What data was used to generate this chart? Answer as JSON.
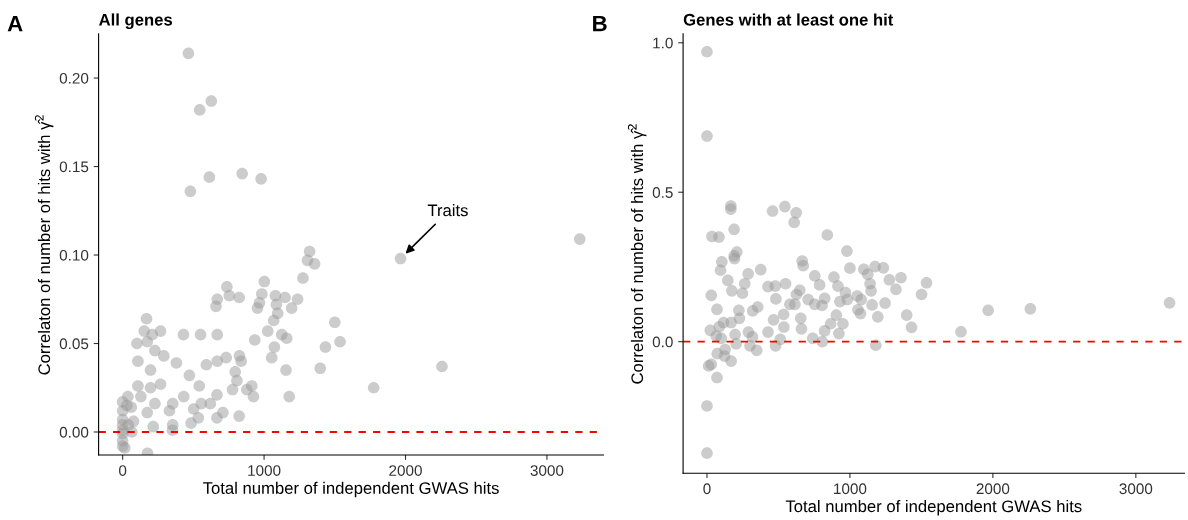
{
  "chart_data": [
    {
      "type": "scatter",
      "title": "All genes",
      "xlabel": "Total number of independent GWAS hits",
      "ylabel": "Correlaton of number of hits with γ̂$^{2}$",
      "annotations": [
        "A",
        {
          "text": "Traits",
          "x": 1965,
          "y": 0.098
        }
      ],
      "series": [
        {
          "color": "#999999",
          "x": [
            465,
            545,
            627,
            613,
            479,
            845,
            979,
            1322,
            1307,
            1357,
            1275,
            1965,
            737,
            669,
            754,
            824,
            1002,
            984,
            967,
            953,
            660,
            1080,
            1148,
            1237,
            1195,
            1087,
            1096,
            1068,
            1026,
            1125,
            1160,
            1500,
            1537,
            1434,
            1397,
            1775,
            1178,
            1155,
            1054,
            1073,
            934,
            169,
            153,
            268,
            209,
            101,
            174,
            430,
            551,
            669,
            228,
            291,
            108,
            197,
            380,
            472,
            592,
            669,
            732,
            826,
            838,
            796,
            808,
            542,
            268,
            108,
            197,
            129,
            37,
            777,
            878,
            913,
            925,
            667,
            432,
            556,
            620,
            502,
            331,
            228,
            354,
            709,
            824,
            535,
            667,
            484,
            352,
            354,
            216,
            174,
            176,
            77,
            61,
            0,
            0,
            0,
            0,
            0,
            0,
            0,
            0,
            15,
            30,
            65,
            40,
            2258,
            3232
          ],
          "values": [
            0.214,
            0.182,
            0.187,
            0.144,
            0.136,
            0.146,
            0.143,
            0.102,
            0.097,
            0.095,
            0.087,
            0.098,
            0.082,
            0.075,
            0.077,
            0.076,
            0.085,
            0.078,
            0.073,
            0.07,
            0.071,
            0.077,
            0.076,
            0.075,
            0.07,
            0.072,
            0.067,
            0.063,
            0.057,
            0.055,
            0.053,
            0.062,
            0.051,
            0.048,
            0.036,
            0.025,
            0.02,
            0.035,
            0.042,
            0.048,
            0.052,
            0.064,
            0.057,
            0.057,
            0.055,
            0.05,
            0.051,
            0.055,
            0.055,
            0.055,
            0.046,
            0.043,
            0.04,
            0.035,
            0.039,
            0.032,
            0.038,
            0.04,
            0.042,
            0.043,
            0.04,
            0.034,
            0.029,
            0.026,
            0.027,
            0.026,
            0.025,
            0.02,
            0.02,
            0.024,
            0.024,
            0.026,
            0.02,
            0.021,
            0.02,
            0.016,
            0.016,
            0.013,
            0.012,
            0.016,
            0.016,
            0.011,
            0.009,
            0.008,
            0.008,
            0.005,
            0.001,
            0.004,
            0.003,
            0.011,
            -0.012,
            0.006,
            0.014,
            0.017,
            0.012,
            0.007,
            0.004,
            -0.001,
            0.001,
            -0.005,
            -0.008,
            -0.009,
            0.015,
            0.0,
            0.004,
            0.037,
            0.109
          ]
        }
      ],
      "ref_lines": [
        {
          "axis": "y",
          "value": 0,
          "color": "#ff0000",
          "line_style": "dashed"
        }
      ],
      "xlim": [
        -170,
        3400
      ],
      "ylim": [
        -0.013,
        0.225
      ],
      "xticks": [
        0,
        1000,
        2000,
        3000
      ],
      "yticks": [
        {
          "value": 0,
          "label": "0.00"
        },
        {
          "value": 0.05,
          "label": "0.05"
        },
        {
          "value": 0.1,
          "label": "0.10"
        },
        {
          "value": 0.15,
          "label": "0.15"
        },
        {
          "value": 0.2,
          "label": "0.20"
        }
      ],
      "marker": "circle",
      "grid": false,
      "legend": false
    },
    {
      "type": "scatter",
      "title": "Genes with at least one hit",
      "xlabel": "Total number of independent GWAS hits",
      "ylabel": "Correlaton of number of hits with γ̂$^{2}$",
      "annotations": [
        "B"
      ],
      "series": [
        {
          "color": "#999999",
          "x": [
            0,
            0,
            0,
            0,
            167,
            167,
            459,
            545,
            624,
            610,
            190,
            35,
            84,
            842,
            979,
            190,
            209,
            193,
            104,
            95,
            376,
            666,
            673,
            1000,
            1097,
            1125,
            1176,
            1234,
            1276,
            1357,
            1322,
            1536,
            1501,
            1397,
            1431,
            288,
            264,
            146,
            174,
            248,
            427,
            478,
            550,
            482,
            30,
            70,
            223,
            227,
            320,
            355,
            754,
            788,
            888,
            916,
            969,
            930,
            981,
            1141,
            1148,
            1155,
            1051,
            1079,
            1056,
            1074,
            1246,
            1195,
            626,
            649,
            580,
            615,
            708,
            754,
            823,
            805,
            656,
            661,
            536,
            538,
            466,
            427,
            513,
            480,
            740,
            823,
            807,
            865,
            905,
            951,
            923,
            1181,
            290,
            318,
            301,
            348,
            197,
            204,
            169,
            123,
            127,
            72,
            23,
            65,
            86,
            116,
            169,
            100,
            12,
            30,
            70,
            1777,
            1967,
            2262,
            3236
          ],
          "values": [
            0.97,
            0.688,
            -0.215,
            -0.373,
            0.454,
            0.443,
            0.437,
            0.452,
            0.431,
            0.399,
            0.376,
            0.352,
            0.35,
            0.357,
            0.303,
            0.287,
            0.3,
            0.278,
            0.267,
            0.239,
            0.241,
            0.27,
            0.254,
            0.246,
            0.242,
            0.225,
            0.251,
            0.247,
            0.207,
            0.214,
            0.175,
            0.197,
            0.158,
            0.089,
            0.048,
            0.227,
            0.194,
            0.205,
            0.17,
            0.162,
            0.184,
            0.186,
            0.194,
            0.143,
            0.155,
            0.108,
            0.105,
            0.078,
            0.103,
            0.116,
            0.22,
            0.19,
            0.216,
            0.186,
            0.164,
            0.134,
            0.141,
            0.194,
            0.17,
            0.123,
            0.153,
            0.141,
            0.107,
            0.094,
            0.129,
            0.083,
            0.158,
            0.172,
            0.125,
            0.125,
            0.141,
            0.125,
            0.145,
            0.121,
            0.078,
            0.043,
            0.091,
            0.049,
            0.073,
            0.032,
            0.008,
            -0.014,
            0.011,
            0.036,
            0.0,
            0.06,
            0.089,
            0.06,
            0.027,
            -0.012,
            0.032,
            0.016,
            -0.014,
            -0.029,
            0.024,
            -0.007,
            -0.065,
            -0.048,
            -0.026,
            -0.04,
            0.038,
            0.019,
            0.05,
            0.064,
            0.064,
            0.011,
            -0.081,
            -0.076,
            -0.12,
            0.033,
            0.105,
            0.11,
            0.13
          ]
        }
      ],
      "ref_lines": [
        {
          "axis": "y",
          "value": 0,
          "color": "#ff0000",
          "line_style": "dashed"
        }
      ],
      "xlim": [
        -167,
        3340
      ],
      "ylim": [
        -0.44,
        1.03
      ],
      "xticks": [
        0,
        1000,
        2000,
        3000
      ],
      "yticks": [
        {
          "value": 0,
          "label": "0.0"
        },
        {
          "value": 0.5,
          "label": "0.5"
        },
        {
          "value": 1.0,
          "label": "1.0"
        }
      ],
      "marker": "circle",
      "grid": false,
      "legend": false
    }
  ]
}
